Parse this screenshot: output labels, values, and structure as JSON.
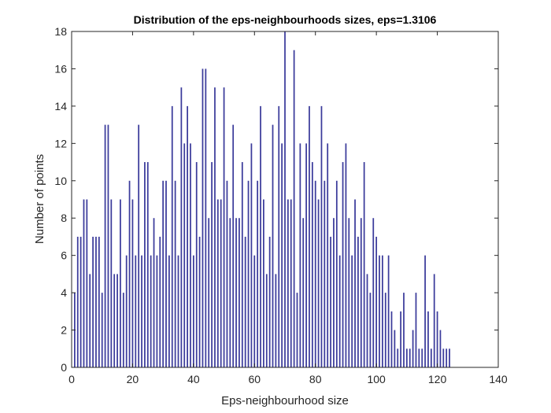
{
  "chart_data": {
    "type": "bar",
    "title": "Distribution of the eps-neighbourhoods sizes, eps=1.3106",
    "xlabel": "Eps-neighbourhood size",
    "ylabel": "Number of points",
    "xlim": [
      0,
      140
    ],
    "ylim": [
      0,
      18
    ],
    "xticks": [
      0,
      20,
      40,
      60,
      80,
      100,
      120,
      140
    ],
    "yticks": [
      0,
      2,
      4,
      6,
      8,
      10,
      12,
      14,
      16,
      18
    ],
    "grid": false,
    "bar_color": "#3b3b9b",
    "x": [
      1,
      2,
      3,
      4,
      5,
      6,
      7,
      8,
      9,
      10,
      11,
      12,
      13,
      14,
      15,
      16,
      17,
      18,
      19,
      20,
      21,
      22,
      23,
      24,
      25,
      26,
      27,
      28,
      29,
      30,
      31,
      32,
      33,
      34,
      35,
      36,
      37,
      38,
      39,
      40,
      41,
      42,
      43,
      44,
      45,
      46,
      47,
      48,
      49,
      50,
      51,
      52,
      53,
      54,
      55,
      56,
      57,
      58,
      59,
      60,
      61,
      62,
      63,
      64,
      65,
      66,
      67,
      68,
      69,
      70,
      71,
      72,
      73,
      74,
      75,
      76,
      77,
      78,
      79,
      80,
      81,
      82,
      83,
      84,
      85,
      86,
      87,
      88,
      89,
      90,
      91,
      92,
      93,
      94,
      95,
      96,
      97,
      98,
      99,
      100,
      101,
      102,
      103,
      104,
      105,
      106,
      107,
      108,
      109,
      110,
      111,
      112,
      113,
      114,
      115,
      116,
      117,
      118,
      119,
      120,
      121,
      122,
      123,
      124
    ],
    "values": [
      4,
      7,
      7,
      9,
      9,
      5,
      7,
      7,
      7,
      4,
      13,
      13,
      9,
      5,
      5,
      9,
      4,
      6,
      10,
      9,
      6,
      13,
      6,
      11,
      11,
      6,
      8,
      6,
      7,
      10,
      10,
      6,
      14,
      10,
      6,
      15,
      12,
      14,
      12,
      6,
      11,
      7,
      16,
      16,
      8,
      11,
      15,
      9,
      9,
      15,
      10,
      8,
      13,
      8,
      8,
      11,
      7,
      10,
      12,
      6,
      10,
      14,
      9,
      5,
      7,
      13,
      5,
      14,
      12,
      18,
      9,
      9,
      17,
      4,
      12,
      8,
      12,
      14,
      11,
      10,
      9,
      14,
      10,
      12,
      7,
      8,
      10,
      6,
      11,
      12,
      8,
      6,
      9,
      7,
      8,
      11,
      5,
      4,
      8,
      7,
      6,
      6,
      4,
      6,
      3,
      2,
      1,
      3,
      4,
      1,
      1,
      2,
      4,
      1,
      1,
      6,
      3,
      1,
      5,
      3,
      2,
      1,
      1,
      1
    ]
  }
}
